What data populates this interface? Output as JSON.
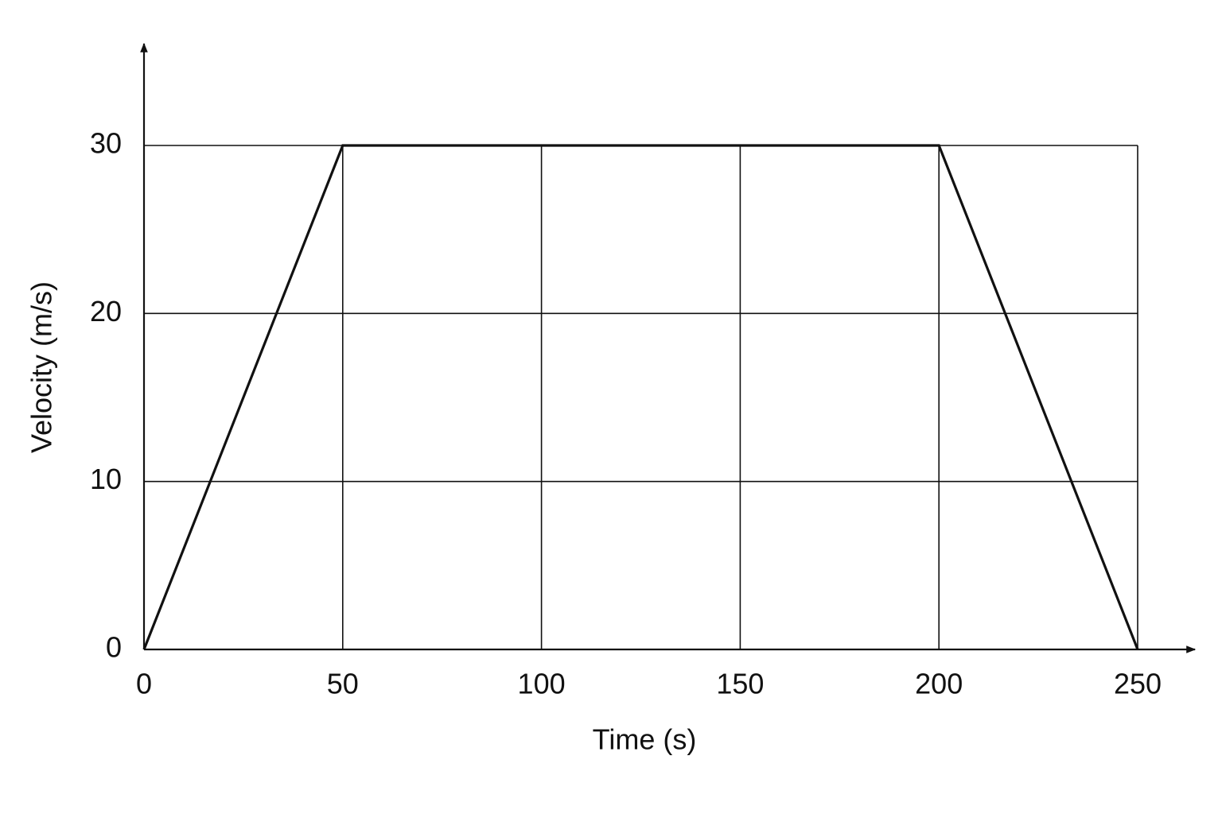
{
  "chart_data": {
    "type": "line",
    "x_label": "Time (s)",
    "y_label": "Velocity (m/s)",
    "x": [
      0,
      50,
      200,
      250
    ],
    "series": [
      {
        "color": "#111111",
        "values": [
          0,
          30,
          30,
          0
        ]
      }
    ],
    "xlim": [
      0,
      250
    ],
    "ylim": [
      0,
      30
    ],
    "xticks": [
      0,
      50,
      100,
      150,
      200,
      250
    ],
    "yticks": [
      0,
      10,
      20,
      30
    ],
    "grid": true
  }
}
